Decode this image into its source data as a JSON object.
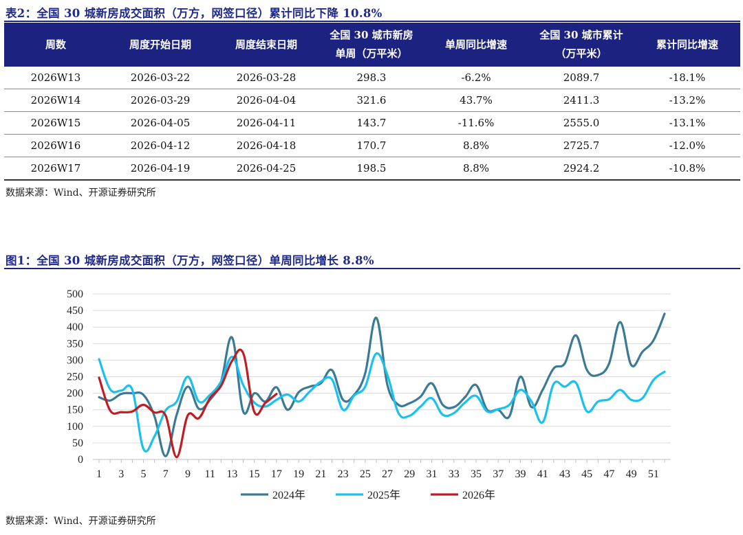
{
  "table": {
    "title": "表2：全国 30 城新房成交面积（万方，网签口径）累计同比下降 10.8%",
    "headers": [
      [
        "周数"
      ],
      [
        "周度开始日期"
      ],
      [
        "周度结束日期"
      ],
      [
        "全国 30 城市新房",
        "单周（万平米）"
      ],
      [
        "单周同比增速"
      ],
      [
        "全国 30 城市累计",
        "（万平米）"
      ],
      [
        "累计同比增速"
      ]
    ],
    "rows": [
      [
        "2026W13",
        "2026-03-22",
        "2026-03-28",
        "298.3",
        "-6.2%",
        "2089.7",
        "-18.1%"
      ],
      [
        "2026W14",
        "2026-03-29",
        "2026-04-04",
        "321.6",
        "43.7%",
        "2411.3",
        "-13.2%"
      ],
      [
        "2026W15",
        "2026-04-05",
        "2026-04-11",
        "143.7",
        "-11.6%",
        "2555.0",
        "-13.1%"
      ],
      [
        "2026W16",
        "2026-04-12",
        "2026-04-18",
        "170.7",
        "8.8%",
        "2725.7",
        "-12.0%"
      ],
      [
        "2026W17",
        "2026-04-19",
        "2026-04-25",
        "198.5",
        "8.8%",
        "2924.2",
        "-10.8%"
      ]
    ],
    "source": "数据来源：Wind、开源证券研究所"
  },
  "figure": {
    "source": "数据来源：Wind、开源证券研究所"
  },
  "chart_data": {
    "type": "line",
    "title": "图1：全国 30 城新房成交面积（万方，网签口径）单周同比增长 8.8%",
    "xlabel": "",
    "ylabel": "",
    "ylim": [
      0,
      500
    ],
    "yticks": [
      0,
      50,
      100,
      150,
      200,
      250,
      300,
      350,
      400,
      450,
      500
    ],
    "xticks": [
      1,
      3,
      5,
      7,
      9,
      11,
      13,
      15,
      17,
      19,
      21,
      23,
      25,
      27,
      29,
      31,
      33,
      35,
      37,
      39,
      41,
      43,
      45,
      47,
      49,
      51
    ],
    "xmax": 52,
    "grid": true,
    "legend_position": "bottom",
    "series": [
      {
        "name": "2024年",
        "color": "#3a7a96",
        "x": [
          1,
          2,
          3,
          4,
          5,
          6,
          7,
          8,
          9,
          10,
          11,
          12,
          13,
          14,
          15,
          16,
          17,
          18,
          19,
          20,
          21,
          22,
          23,
          24,
          25,
          26,
          27,
          28,
          29,
          30,
          31,
          32,
          33,
          34,
          35,
          36,
          37,
          38,
          39,
          40,
          41,
          42,
          43,
          44,
          45,
          46,
          47,
          48,
          49,
          50,
          51,
          52
        ],
        "values": [
          188,
          178,
          198,
          200,
          195,
          130,
          10,
          135,
          220,
          153,
          180,
          235,
          368,
          145,
          200,
          175,
          218,
          150,
          203,
          220,
          230,
          270,
          180,
          195,
          260,
          428,
          225,
          165,
          170,
          190,
          230,
          165,
          158,
          188,
          225,
          150,
          150,
          130,
          250,
          158,
          210,
          275,
          290,
          375,
          270,
          255,
          290,
          415,
          285,
          325,
          360,
          440
        ]
      },
      {
        "name": "2025年",
        "color": "#19c1ec",
        "x": [
          1,
          2,
          3,
          4,
          5,
          6,
          7,
          8,
          9,
          10,
          11,
          12,
          13,
          14,
          15,
          16,
          17,
          18,
          19,
          20,
          21,
          22,
          23,
          24,
          25,
          26,
          27,
          28,
          29,
          30,
          31,
          32,
          33,
          34,
          35,
          36,
          37,
          38,
          39,
          40,
          41,
          42,
          43,
          44,
          45,
          46,
          47,
          48,
          49,
          50,
          51,
          52
        ],
        "values": [
          303,
          212,
          208,
          210,
          32,
          70,
          148,
          175,
          250,
          175,
          195,
          235,
          310,
          225,
          172,
          160,
          180,
          196,
          175,
          205,
          235,
          242,
          150,
          193,
          220,
          320,
          255,
          140,
          132,
          160,
          185,
          135,
          140,
          172,
          192,
          145,
          152,
          165,
          210,
          175,
          112,
          228,
          220,
          232,
          145,
          175,
          182,
          210,
          180,
          185,
          240,
          265
        ]
      },
      {
        "name": "2026年",
        "color": "#c01c24",
        "x": [
          1,
          2,
          3,
          4,
          5,
          6,
          7,
          8,
          9,
          10,
          11,
          12,
          13,
          14,
          15,
          16,
          17
        ],
        "values": [
          247,
          148,
          143,
          145,
          165,
          142,
          133,
          7,
          133,
          125,
          185,
          222,
          298,
          321,
          144,
          171,
          198
        ]
      }
    ]
  }
}
